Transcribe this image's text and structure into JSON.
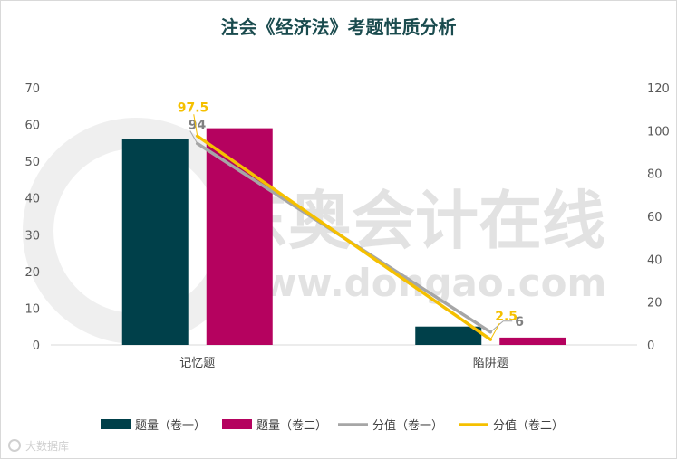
{
  "chart_data": {
    "type": "bar",
    "title": "注会《经济法》考题性质分析",
    "categories": [
      "记忆题",
      "陷阱题"
    ],
    "bar_series": [
      {
        "name": "题量（卷一）",
        "values": [
          56,
          5
        ],
        "color": "#00404a"
      },
      {
        "name": "题量（卷二）",
        "values": [
          59,
          2
        ],
        "color": "#b5025f"
      }
    ],
    "line_series": [
      {
        "name": "分值（卷一）",
        "values": [
          94,
          6
        ],
        "color": "#a6a6a6",
        "label_color": "#808080"
      },
      {
        "name": "分值（卷二）",
        "values": [
          97.5,
          2.5
        ],
        "color": "#f5c000",
        "label_color": "#f5c000"
      }
    ],
    "data_labels": {
      "line_a": [
        "94",
        "6"
      ],
      "line_b": [
        "97.5",
        "2.5"
      ]
    },
    "y_left": {
      "min": 0,
      "max": 70,
      "step": 10
    },
    "y_right": {
      "min": 0,
      "max": 120,
      "step": 20
    },
    "y_left_ticks": [
      "0",
      "10",
      "20",
      "30",
      "40",
      "50",
      "60",
      "70"
    ],
    "y_right_ticks": [
      "0",
      "20",
      "40",
      "60",
      "80",
      "100",
      "120"
    ],
    "grid": false,
    "legend_position": "bottom"
  },
  "watermark": {
    "brand": "东奥会计在线",
    "url": "www.dongao.com",
    "corner": "大数据库"
  }
}
